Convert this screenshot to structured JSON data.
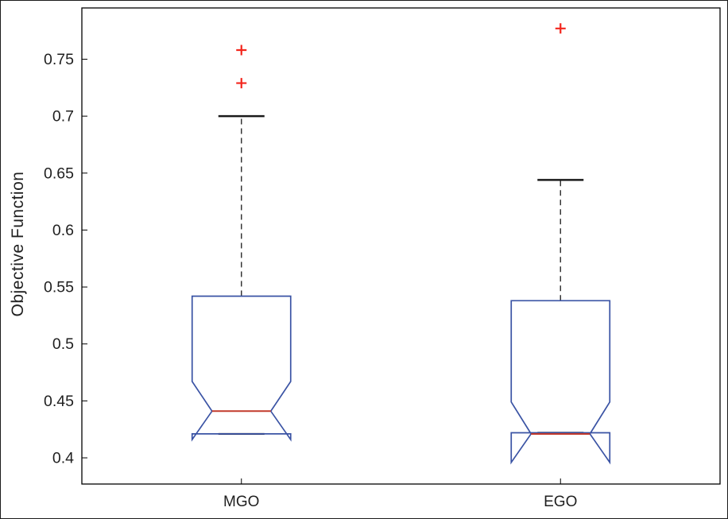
{
  "figure": {
    "ylabel": "Objective Function"
  },
  "chart_data": {
    "type": "boxplot",
    "title": "",
    "xlabel": "",
    "ylabel": "Objective Function",
    "categories": [
      "MGO",
      "EGO"
    ],
    "ylim": [
      0.377,
      0.795
    ],
    "yticks": [
      0.4,
      0.45,
      0.5,
      0.55,
      0.6,
      0.65,
      0.7,
      0.75
    ],
    "grid": false,
    "notched": true,
    "series": [
      {
        "name": "MGO",
        "whisker_low": 0.421,
        "q1": 0.421,
        "median": 0.441,
        "q3": 0.542,
        "whisker_high": 0.7,
        "notch_low": 0.416,
        "notch_high": 0.467,
        "outliers": [
          0.729,
          0.758
        ]
      },
      {
        "name": "EGO",
        "whisker_low": 0.422,
        "q1": 0.422,
        "median": 0.421,
        "q3": 0.538,
        "whisker_high": 0.644,
        "notch_low": 0.396,
        "notch_high": 0.449,
        "outliers": [
          0.777
        ]
      }
    ],
    "colors": {
      "box": "#3a53a4",
      "median": "#c23a2c",
      "outlier": "#f3261d",
      "whisker": "#2a2a2a",
      "cap": "#1a1a1a",
      "axis": "#000000",
      "text": "#1f1f1f",
      "background": "#ffffff"
    }
  }
}
